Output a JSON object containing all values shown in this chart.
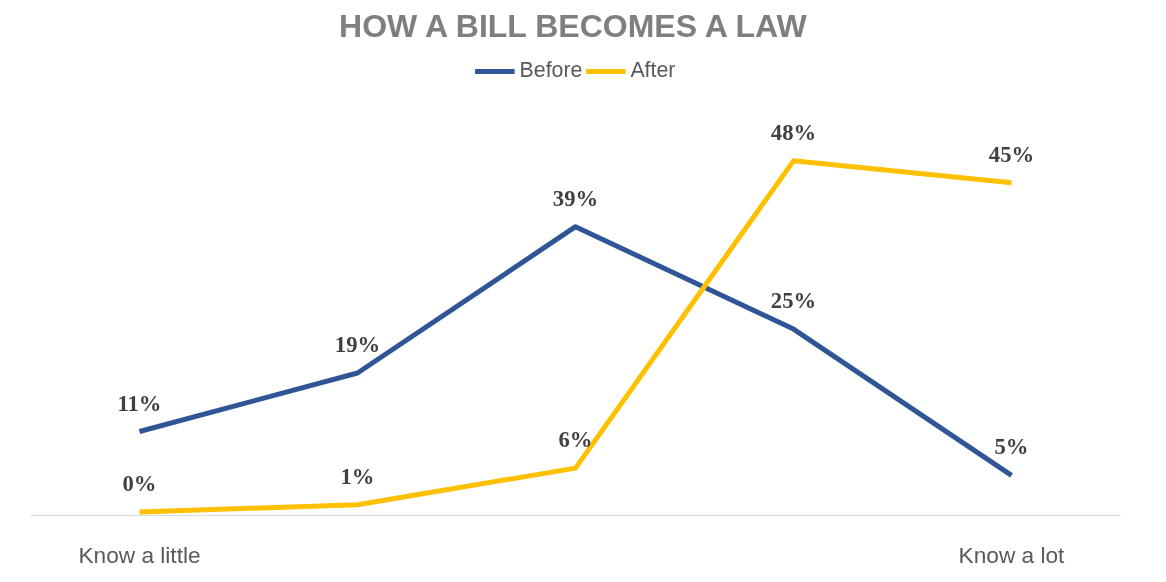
{
  "chart_data": {
    "type": "line",
    "title": "HOW A BILL BECOMES A LAW",
    "categories": [
      "Know a little",
      null,
      null,
      null,
      "Know a lot"
    ],
    "series": [
      {
        "name": "Before",
        "color": "#2f5597",
        "values": [
          11,
          19,
          39,
          25,
          5
        ],
        "value_labels": [
          "11%",
          "19%",
          "39%",
          "25%",
          "5%"
        ]
      },
      {
        "name": "After",
        "color": "#ffc000",
        "values": [
          0,
          1,
          6,
          48,
          45
        ],
        "value_labels": [
          "0%",
          "1%",
          "6%",
          "48%",
          "45%"
        ]
      }
    ],
    "legend": "top",
    "grid": false,
    "marker": "none",
    "line_style": "solid"
  }
}
